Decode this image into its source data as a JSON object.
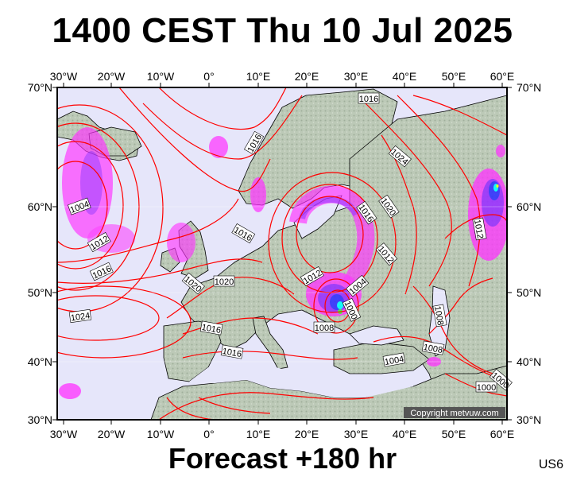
{
  "title": "1400 CEST Thu 10 Jul 2025",
  "footer": "Forecast +180 hr",
  "region_code": "US6",
  "copyright": "Copyright metvuw.com",
  "colors": {
    "ocean": "#e6e6fa",
    "land": "#b9c7b4",
    "isobar": "#ff0000",
    "rain_magenta": "#ff33ff",
    "rain_purple": "#9b30ff",
    "rain_blue": "#3333ff",
    "rain_cyan": "#00ffff",
    "rain_green": "#33ff33",
    "rain_yellow": "#ffff00"
  },
  "axes": {
    "lon_labels": [
      "30°W",
      "20°W",
      "10°W",
      "0°",
      "10°E",
      "20°E",
      "30°E",
      "40°E",
      "50°E",
      "60°E"
    ],
    "lat_labels": [
      "70°N",
      "60°N",
      "50°N",
      "40°N",
      "30°N"
    ]
  },
  "isobar_labels": [
    {
      "text": "1016"
    },
    {
      "text": "1016"
    },
    {
      "text": "1024"
    },
    {
      "text": "1004"
    },
    {
      "text": "1012"
    },
    {
      "text": "1016"
    },
    {
      "text": "1020"
    },
    {
      "text": "1020"
    },
    {
      "text": "1016"
    },
    {
      "text": "1016"
    },
    {
      "text": "1020"
    },
    {
      "text": "1012"
    },
    {
      "text": "1012"
    },
    {
      "text": "1004"
    },
    {
      "text": "1000"
    },
    {
      "text": "1008"
    },
    {
      "text": "1024"
    },
    {
      "text": "1016"
    },
    {
      "text": "1016"
    },
    {
      "text": "1008"
    },
    {
      "text": "1008"
    },
    {
      "text": "1004"
    },
    {
      "text": "1000"
    },
    {
      "text": "1000"
    },
    {
      "text": "1012"
    }
  ]
}
